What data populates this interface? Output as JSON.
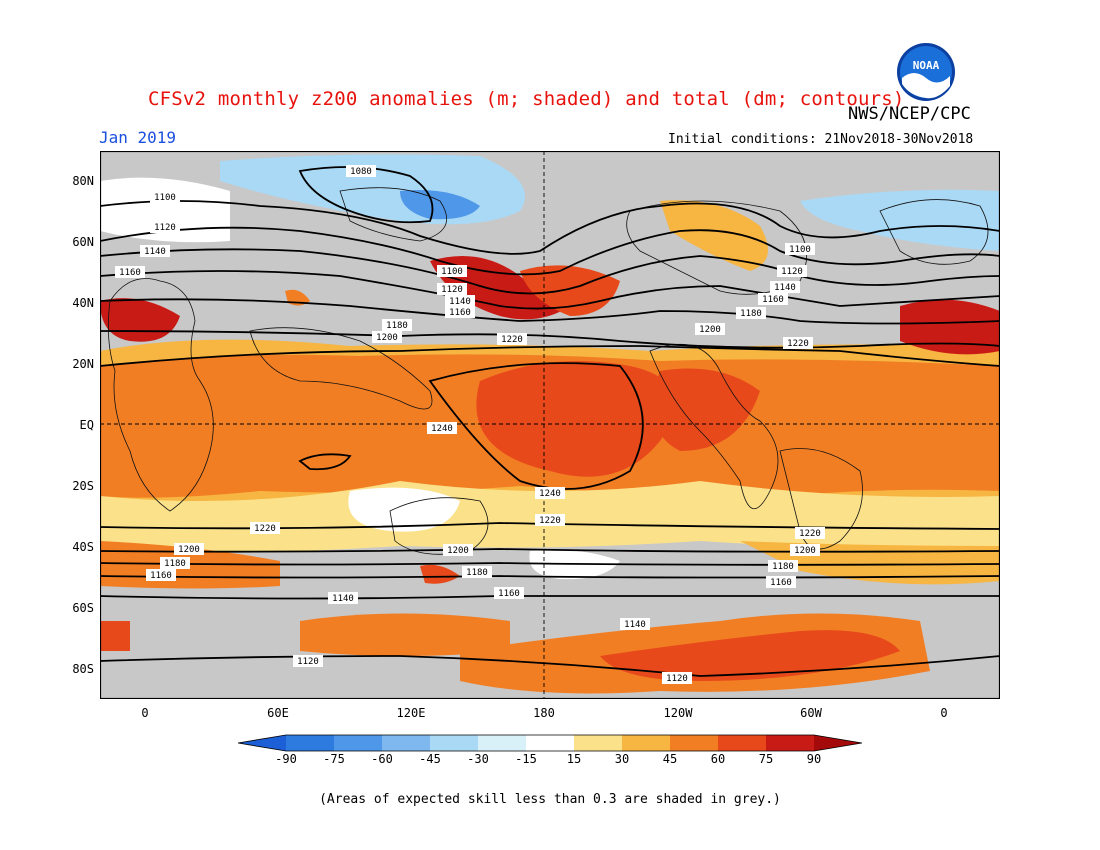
{
  "title": "CFSv2 monthly z200 anomalies (m; shaded) and total (dm; contours)",
  "agency": "NWS/NCEP/CPC",
  "logo_text": "NOAA",
  "month": "Jan 2019",
  "initial_conditions": "Initial conditions: 21Nov2018-30Nov2018",
  "lat_labels": [
    "80N",
    "60N",
    "40N",
    "20N",
    "EQ",
    "20S",
    "40S",
    "60S",
    "80S"
  ],
  "lon_labels": [
    "0",
    "60E",
    "120E",
    "180",
    "120W",
    "60W",
    "0"
  ],
  "colorbar": {
    "labels": [
      "-90",
      "-75",
      "-60",
      "-45",
      "-30",
      "-15",
      "15",
      "30",
      "45",
      "60",
      "75",
      "90"
    ],
    "colors": [
      "#1d5fd6",
      "#2e7be0",
      "#4f97e8",
      "#7fb8ef",
      "#aad9f5",
      "#d8f1f8",
      "#ffffff",
      "#fbe28a",
      "#f7b541",
      "#f27e24",
      "#e8491b",
      "#c91b16",
      "#a50a0a"
    ]
  },
  "note": "(Areas of expected skill less than 0.3 are shaded in grey.)",
  "contour_labels": [
    "1080",
    "1100",
    "1120",
    "1140",
    "1160",
    "1180",
    "1200",
    "1220",
    "1240"
  ]
}
